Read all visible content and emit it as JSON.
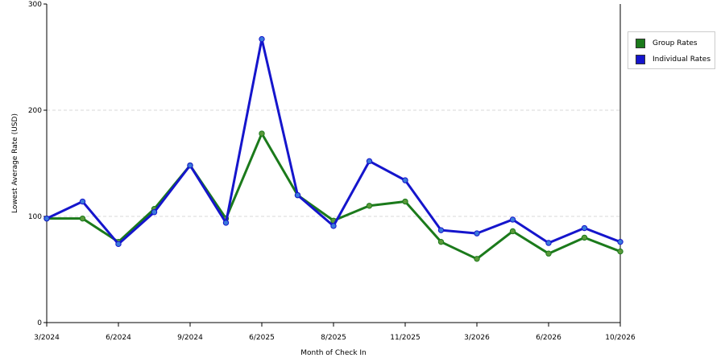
{
  "chart_data": {
    "type": "line",
    "title": "",
    "xlabel": "Month of Check In",
    "ylabel": "Lowest Average Rate (USD)",
    "ylim": [
      0,
      300
    ],
    "yticks": [
      "0",
      "100",
      "200",
      "300"
    ],
    "x_tick_labels": [
      "3/2024",
      "6/2024",
      "9/2024",
      "6/2025",
      "8/2025",
      "11/2025",
      "3/2026",
      "6/2026",
      "10/2026"
    ],
    "x_tick_positions": [
      0,
      2,
      4,
      6,
      8,
      10,
      12,
      14,
      16
    ],
    "grid": "horizontal dashed",
    "legend_position": "right",
    "series": [
      {
        "name": "Group Rates",
        "color": "#1b7a1b",
        "marker_color": "#5a9a3a",
        "values": [
          98,
          98,
          76,
          107,
          148,
          98,
          178,
          120,
          96,
          110,
          114,
          76,
          60,
          86,
          65,
          80,
          67
        ]
      },
      {
        "name": "Individual Rates",
        "color": "#1515cc",
        "marker_color": "#3a7adc",
        "values": [
          98,
          114,
          74,
          104,
          148,
          94,
          267,
          120,
          91,
          152,
          134,
          87,
          84,
          97,
          75,
          89,
          76
        ]
      }
    ]
  }
}
